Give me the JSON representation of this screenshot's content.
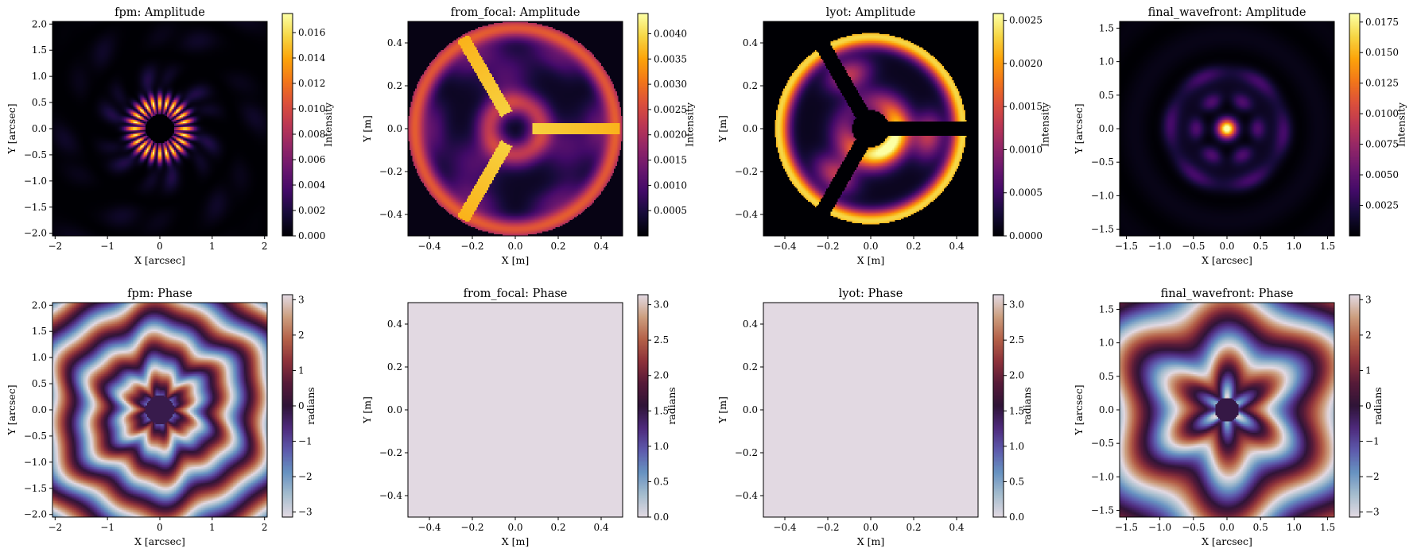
{
  "chart_data": [
    {
      "type": "heatmap",
      "title": "fpm: Amplitude",
      "xlabel": "X [arcsec]",
      "ylabel": "Y [arcsec]",
      "xlim": [
        -2.05,
        2.05
      ],
      "ylim": [
        -2.05,
        2.05
      ],
      "xticks": [
        -2,
        -1,
        0,
        1,
        2
      ],
      "yticks": [
        -2.0,
        -1.5,
        -1.0,
        -0.5,
        0.0,
        0.5,
        1.0,
        1.5,
        2.0
      ],
      "colormap": "inferno",
      "colorbar_label": "Intensity",
      "clim": [
        0.0,
        0.0175
      ],
      "colorbar_ticks": [
        0.0,
        0.002,
        0.004,
        0.006,
        0.008,
        0.01,
        0.012,
        0.014,
        0.016
      ],
      "pattern": "focal_ring"
    },
    {
      "type": "heatmap",
      "title": "from_focal: Amplitude",
      "xlabel": "X [m]",
      "ylabel": "Y [m]",
      "xlim": [
        -0.5,
        0.5
      ],
      "ylim": [
        -0.5,
        0.5
      ],
      "xticks": [
        -0.4,
        -0.2,
        0.0,
        0.2,
        0.4
      ],
      "yticks": [
        -0.4,
        -0.2,
        0.0,
        0.2,
        0.4
      ],
      "colormap": "inferno",
      "colorbar_label": "Intensity",
      "clim": [
        0.0,
        0.0044
      ],
      "colorbar_ticks": [
        0.0005,
        0.001,
        0.0015,
        0.002,
        0.0025,
        0.003,
        0.0035,
        0.004
      ],
      "pattern": "from_focal"
    },
    {
      "type": "heatmap",
      "title": "lyot: Amplitude",
      "xlabel": "X [m]",
      "ylabel": "Y [m]",
      "xlim": [
        -0.5,
        0.5
      ],
      "ylim": [
        -0.5,
        0.5
      ],
      "xticks": [
        -0.4,
        -0.2,
        0.0,
        0.2,
        0.4
      ],
      "yticks": [
        -0.4,
        -0.2,
        0.0,
        0.2,
        0.4
      ],
      "colormap": "inferno",
      "colorbar_label": "Intensity",
      "clim": [
        0.0,
        0.00258
      ],
      "colorbar_ticks": [
        0.0,
        0.0005,
        0.001,
        0.0015,
        0.002,
        0.0025
      ],
      "pattern": "lyot"
    },
    {
      "type": "heatmap",
      "title": "final_wavefront: Amplitude",
      "xlabel": "X [arcsec]",
      "ylabel": "Y [arcsec]",
      "xlim": [
        -1.6,
        1.6
      ],
      "ylim": [
        -1.6,
        1.6
      ],
      "xticks": [
        -1.5,
        -1.0,
        -0.5,
        0.0,
        0.5,
        1.0,
        1.5
      ],
      "yticks": [
        -1.5,
        -1.0,
        -0.5,
        0.0,
        0.5,
        1.0,
        1.5
      ],
      "colormap": "inferno",
      "colorbar_label": "Intensity",
      "clim": [
        0.0,
        0.0182
      ],
      "colorbar_ticks": [
        0.0025,
        0.005,
        0.0075,
        0.01,
        0.0125,
        0.015,
        0.0175
      ],
      "pattern": "final_amp"
    },
    {
      "type": "heatmap",
      "title": "fpm: Phase",
      "xlabel": "X [arcsec]",
      "ylabel": "Y [arcsec]",
      "xlim": [
        -2.05,
        2.05
      ],
      "ylim": [
        -2.05,
        2.05
      ],
      "xticks": [
        -2,
        -1,
        0,
        1,
        2
      ],
      "yticks": [
        -2.0,
        -1.5,
        -1.0,
        -0.5,
        0.0,
        0.5,
        1.0,
        1.5,
        2.0
      ],
      "colormap": "twilight",
      "colorbar_label": "radians",
      "clim": [
        -3.14159,
        3.14159
      ],
      "colorbar_ticks": [
        -3,
        -2,
        -1,
        0,
        1,
        2,
        3
      ],
      "pattern": "phase_fpm"
    },
    {
      "type": "heatmap",
      "title": "from_focal: Phase",
      "xlabel": "X [m]",
      "ylabel": "Y [m]",
      "xlim": [
        -0.5,
        0.5
      ],
      "ylim": [
        -0.5,
        0.5
      ],
      "xticks": [
        -0.4,
        -0.2,
        0.0,
        0.2,
        0.4
      ],
      "yticks": [
        -0.4,
        -0.2,
        0.0,
        0.2,
        0.4
      ],
      "colormap": "twilight",
      "colorbar_label": "radians",
      "clim": [
        0.0,
        3.14159
      ],
      "colorbar_ticks": [
        0.0,
        0.5,
        1.0,
        1.5,
        2.0,
        2.5,
        3.0
      ],
      "pattern": "flat",
      "fill_color": "#e2d9e2"
    },
    {
      "type": "heatmap",
      "title": "lyot: Phase",
      "xlabel": "X [m]",
      "ylabel": "Y [m]",
      "xlim": [
        -0.5,
        0.5
      ],
      "ylim": [
        -0.5,
        0.5
      ],
      "xticks": [
        -0.4,
        -0.2,
        0.0,
        0.2,
        0.4
      ],
      "yticks": [
        -0.4,
        -0.2,
        0.0,
        0.2,
        0.4
      ],
      "colormap": "twilight",
      "colorbar_label": "radians",
      "clim": [
        0.0,
        3.14159
      ],
      "colorbar_ticks": [
        0.0,
        0.5,
        1.0,
        1.5,
        2.0,
        2.5,
        3.0
      ],
      "pattern": "flat",
      "fill_color": "#e2d9e2"
    },
    {
      "type": "heatmap",
      "title": "final_wavefront: Phase",
      "xlabel": "X [arcsec]",
      "ylabel": "Y [arcsec]",
      "xlim": [
        -1.6,
        1.6
      ],
      "ylim": [
        -1.6,
        1.6
      ],
      "xticks": [
        -1.5,
        -1.0,
        -0.5,
        0.0,
        0.5,
        1.0,
        1.5
      ],
      "yticks": [
        -1.5,
        -1.0,
        -0.5,
        0.0,
        0.5,
        1.0,
        1.5
      ],
      "colormap": "twilight",
      "colorbar_label": "radians",
      "clim": [
        -3.14159,
        3.14159
      ],
      "colorbar_ticks": [
        -3,
        -2,
        -1,
        0,
        1,
        2,
        3
      ],
      "pattern": "phase_final"
    }
  ]
}
